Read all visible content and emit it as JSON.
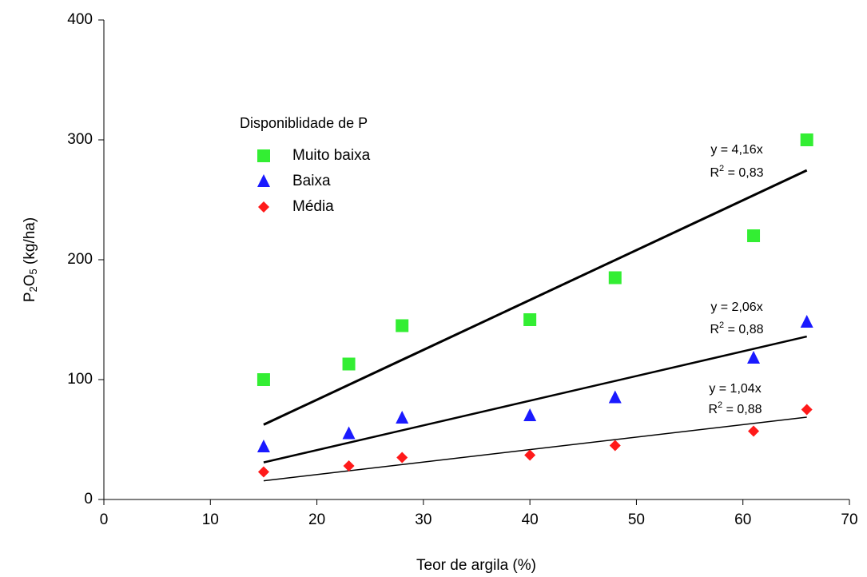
{
  "chart_data": {
    "type": "scatter",
    "x_label": "Teor de argila (%)",
    "y_label_parts": [
      "P",
      "2",
      "O",
      "5",
      " (kg/ha)"
    ],
    "legend_title": "Disponiblidade de P",
    "x": [
      15,
      23,
      28,
      40,
      48,
      61,
      66
    ],
    "series": [
      {
        "name": "Muito baixa",
        "color": "#33ee33",
        "marker": "square",
        "values": [
          100,
          113,
          145,
          150,
          185,
          220,
          300
        ],
        "trend": {
          "slope": 4.16,
          "width": 3,
          "equation": "y = 4,16x",
          "r2_parts": [
            "R",
            "2",
            " = 0,83"
          ]
        }
      },
      {
        "name": "Baixa",
        "color": "#1a1aff",
        "marker": "triangle",
        "values": [
          44,
          55,
          68,
          70,
          85,
          118,
          148
        ],
        "trend": {
          "slope": 2.06,
          "width": 2.5,
          "equation": "y = 2,06x",
          "r2_parts": [
            "R",
            "2",
            " = 0,88"
          ]
        }
      },
      {
        "name": "Média",
        "color": "#ff1a1a",
        "marker": "diamond",
        "values": [
          23,
          28,
          35,
          37,
          45,
          57,
          75
        ],
        "trend": {
          "slope": 1.04,
          "width": 1.5,
          "equation": "y = 1,04x",
          "r2_parts": [
            "R",
            "2",
            " = 0,88"
          ]
        }
      }
    ],
    "xlim": [
      0,
      70
    ],
    "xticks": [
      0,
      10,
      20,
      30,
      40,
      50,
      60,
      70
    ],
    "ylim": [
      0,
      400
    ],
    "yticks": [
      0,
      100,
      200,
      300,
      400
    ]
  }
}
